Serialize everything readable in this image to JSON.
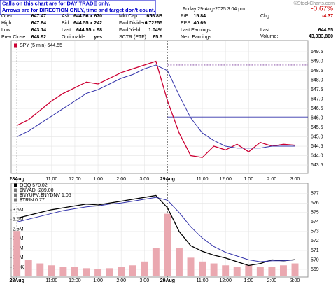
{
  "notice": [
    "Calls on this chart are for DAY TRADE only.",
    "Arrows are for DIRECTION ONLY, time and target don't count."
  ],
  "copyright": "©StockCharts.com",
  "header": {
    "date": "Friday  29-Aug-2025  3:04 pm",
    "change_pct": "-0.67%",
    "columns": [
      [
        [
          "Open:",
          "647.47"
        ],
        [
          "High:",
          "647.84"
        ],
        [
          "Low:",
          "643.14"
        ],
        [
          "Prev Close:",
          "648.92"
        ]
      ],
      [
        [
          "Ask:",
          "644.56 x 670"
        ],
        [
          "Bid:",
          "644.55 x 242"
        ],
        [
          "Last:",
          "644.55 x 98"
        ],
        [
          "Optionable:",
          "yes"
        ]
      ],
      [
        [
          "Mkt Cap:",
          "656.8B"
        ],
        [
          "Fwd Dividend:",
          "6.72255"
        ],
        [
          "Fwd Yield:",
          "1.04%"
        ],
        [
          "SCTR (ETF):",
          "65.5"
        ]
      ],
      [
        [
          "P/E:",
          "15.84"
        ],
        [
          "EPS:",
          "40.69"
        ],
        [
          "Last Earnings:"
        ],
        [
          "Next Earnings:"
        ]
      ]
    ],
    "right": [
      [
        "Chg:",
        "-4.37"
      ],
      [
        "Last:",
        "644.55"
      ],
      [
        "Volume:",
        "43,033,800"
      ]
    ]
  },
  "chart_data": [
    {
      "type": "line",
      "grid": true,
      "levels": [
        648.8,
        646.05,
        643.3
      ],
      "x": [
        0,
        6,
        12,
        18,
        24,
        30,
        36,
        42,
        48,
        54,
        60,
        66,
        72,
        78,
        84,
        90,
        96,
        102,
        108,
        114,
        120,
        126,
        132,
        138,
        144
      ],
      "xlim": [
        -2.6,
        150.7
      ],
      "xticks": [
        {
          "value": 0,
          "label": "28Aug"
        },
        {
          "value": 18,
          "label": "11:00"
        },
        {
          "value": 30,
          "label": "12:00"
        },
        {
          "value": 42,
          "label": "1:00"
        },
        {
          "value": 54,
          "label": "2:00"
        },
        {
          "value": 66,
          "label": "3:00"
        },
        {
          "value": 78,
          "label": "29Aug"
        },
        {
          "value": 96,
          "label": "11:00"
        },
        {
          "value": 108,
          "label": "12:00"
        },
        {
          "value": 120,
          "label": "1:00"
        },
        {
          "value": 132,
          "label": "2:00"
        },
        {
          "value": 144,
          "label": "3:00"
        }
      ],
      "ylim": [
        643.13,
        649.8
      ],
      "yticks": [
        643.5,
        {
          "value": 644,
          "label": "644.0"
        },
        644.5,
        {
          "value": 645,
          "label": "645.0"
        },
        645.5,
        {
          "value": 646,
          "label": "646.0"
        },
        646.5,
        {
          "value": 647,
          "label": "647.0"
        },
        647.5,
        {
          "value": 648,
          "label": "648.0"
        },
        648.5,
        {
          "value": 649,
          "label": "649.0"
        },
        649.5
      ],
      "series": [
        {
          "name": "SPY (5 min) 644.55",
          "color": "#cc0033",
          "values": [
            645.6,
            645.9,
            646.4,
            646.9,
            647.3,
            647.6,
            647.9,
            647.8,
            648.1,
            648.4,
            648.6,
            648.8,
            649.0,
            646.9,
            645.2,
            644.0,
            643.9,
            644.5,
            644.3,
            644.6,
            644.2,
            644.7,
            644.5,
            644.6,
            644.55
          ]
        },
        {
          "color": "#3333aa",
          "values": [
            645.0,
            645.3,
            645.7,
            646.1,
            646.5,
            646.9,
            647.3,
            647.5,
            647.8,
            648.1,
            648.3,
            648.6,
            648.8,
            648.5,
            647.2,
            646.0,
            645.2,
            644.8,
            644.5,
            644.4,
            644.4,
            644.4,
            644.5,
            644.5,
            644.5
          ]
        }
      ]
    },
    {
      "type": "line",
      "grid": true,
      "legend_extra": [
        "$NYAD -289.00",
        "$NYUPV:$NYDNV 1.05",
        "$TRIN 0.77"
      ],
      "x": [
        0,
        6,
        12,
        18,
        24,
        30,
        36,
        42,
        48,
        54,
        60,
        66,
        72,
        78,
        84,
        90,
        96,
        102,
        108,
        114,
        120,
        126,
        132,
        138,
        144
      ],
      "xlim": [
        -2.6,
        150.7
      ],
      "xticks": [
        {
          "value": 0,
          "label": "28Aug"
        },
        {
          "value": 18,
          "label": "11:00"
        },
        {
          "value": 30,
          "label": "12:00"
        },
        {
          "value": 42,
          "label": "1:00"
        },
        {
          "value": 54,
          "label": "2:00"
        },
        {
          "value": 66,
          "label": "3:00"
        },
        {
          "value": 78,
          "label": "29Aug"
        },
        {
          "value": 96,
          "label": "11:00"
        },
        {
          "value": 108,
          "label": "12:00"
        },
        {
          "value": 120,
          "label": "1:00"
        },
        {
          "value": 132,
          "label": "2:00"
        },
        {
          "value": 144,
          "label": "3:00"
        }
      ],
      "ylim": [
        568.33,
        577.8
      ],
      "yticks": [
        569,
        570,
        571,
        572,
        573,
        574,
        575,
        576,
        577
      ],
      "y2lim": [
        60000,
        4750000
      ],
      "y2ticks": [
        {
          "value": 500000,
          "label": "500K"
        },
        {
          "value": 1000000,
          "label": "1.0M"
        },
        {
          "value": 1500000,
          "label": "1.5M"
        },
        {
          "value": 2000000,
          "label": "2.0M"
        },
        {
          "value": 2500000,
          "label": "2.5M"
        },
        {
          "value": 3000000,
          "label": "3.0M"
        },
        {
          "value": 3500000,
          "label": "3.5M"
        }
      ],
      "series": [
        {
          "kind": "bar",
          "axis": "y2",
          "color": "#eaa8b0",
          "values": [
            2400000,
            900000,
            700000,
            600000,
            500000,
            500000,
            450000,
            400000,
            450000,
            500000,
            600000,
            800000,
            1500000,
            3300000,
            1500000,
            1000000,
            800000,
            700000,
            600000,
            500000,
            600000,
            500000,
            500000,
            600000,
            700000
          ]
        },
        {
          "name": "QQQ 570.02",
          "color": "#000000",
          "values": [
            574.4,
            574.7,
            575.0,
            575.3,
            575.5,
            575.7,
            575.9,
            575.8,
            576.0,
            576.2,
            576.4,
            576.6,
            576.8,
            575.5,
            573.0,
            571.5,
            570.9,
            570.5,
            570.2,
            569.8,
            569.4,
            569.6,
            570.0,
            569.9,
            570.02
          ]
        },
        {
          "color": "#3333aa",
          "values": [
            574.0,
            574.3,
            574.6,
            574.9,
            575.2,
            575.4,
            575.6,
            575.7,
            575.9,
            576.0,
            576.2,
            576.4,
            576.6,
            576.3,
            575.0,
            573.5,
            572.3,
            571.4,
            570.8,
            570.4,
            570.0,
            569.8,
            569.9,
            569.9,
            570.0
          ]
        }
      ]
    }
  ]
}
